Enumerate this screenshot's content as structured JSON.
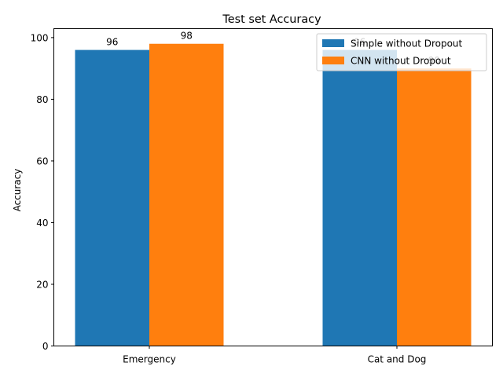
{
  "chart_data": {
    "type": "bar",
    "title": "Test set Accuracy",
    "xlabel": "",
    "ylabel": "Accuracy",
    "categories": [
      "Emergency",
      "Cat and Dog"
    ],
    "series": [
      {
        "name": "Simple without Dropout",
        "values": [
          96,
          96
        ],
        "color": "#1f77b4"
      },
      {
        "name": "CNN without Dropout",
        "values": [
          98,
          90
        ],
        "color": "#ff7f0e"
      }
    ],
    "data_labels": [
      [
        "96",
        "96"
      ],
      [
        "98",
        "90"
      ]
    ],
    "ylim": [
      0,
      102.9
    ],
    "yticks": [
      0,
      20,
      40,
      60,
      80,
      100
    ],
    "grid": false,
    "legend": "top-right"
  }
}
